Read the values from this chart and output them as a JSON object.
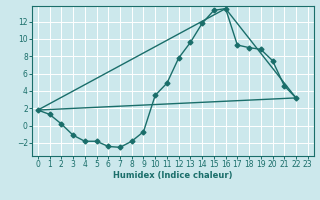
{
  "xlabel": "Humidex (Indice chaleur)",
  "background_color": "#cce8ec",
  "grid_color": "#ffffff",
  "line_color": "#1a6e6a",
  "xlim": [
    -0.5,
    23.5
  ],
  "ylim": [
    -3.5,
    13.8
  ],
  "xticks": [
    0,
    1,
    2,
    3,
    4,
    5,
    6,
    7,
    8,
    9,
    10,
    11,
    12,
    13,
    14,
    15,
    16,
    17,
    18,
    19,
    20,
    21,
    22,
    23
  ],
  "yticks": [
    -2,
    0,
    2,
    4,
    6,
    8,
    10,
    12
  ],
  "series1_x": [
    0,
    1,
    2,
    3,
    4,
    5,
    6,
    7,
    8,
    9,
    10,
    11,
    12,
    13,
    14,
    15,
    16,
    17,
    18,
    19,
    20,
    21,
    22
  ],
  "series1_y": [
    1.8,
    1.3,
    0.2,
    -1.1,
    -1.8,
    -1.8,
    -2.4,
    -2.5,
    -1.8,
    -0.7,
    3.5,
    4.9,
    7.8,
    9.6,
    11.8,
    13.3,
    13.5,
    9.3,
    9.0,
    8.8,
    7.5,
    4.6,
    3.2
  ],
  "line1_x": [
    0,
    16
  ],
  "line1_y": [
    1.8,
    13.5
  ],
  "line2_x": [
    0,
    22
  ],
  "line2_y": [
    1.8,
    3.2
  ],
  "line3_x": [
    16,
    22
  ],
  "line3_y": [
    13.5,
    3.2
  ],
  "markersize": 2.5,
  "linewidth": 1.0,
  "xlabel_fontsize": 6.0,
  "tick_fontsize": 5.5
}
